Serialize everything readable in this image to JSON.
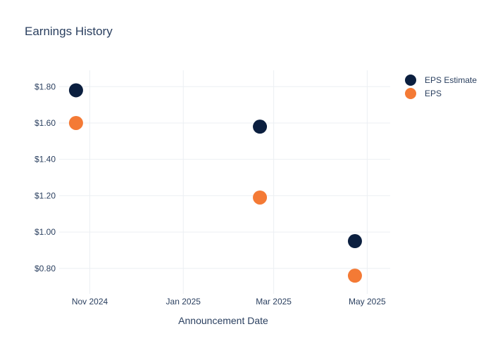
{
  "chart_data": {
    "type": "scatter",
    "title": "Earnings History",
    "xlabel": "Announcement Date",
    "ylabel": "",
    "x_tick_labels": [
      "Nov 2024",
      "Jan 2025",
      "Mar 2025",
      "May 2025"
    ],
    "x_ticks": [
      "2024-11-01",
      "2025-01-01",
      "2025-03-01",
      "2025-05-01"
    ],
    "xlim": [
      "2024-10-12",
      "2025-05-16"
    ],
    "y_tick_labels": [
      "$0.80",
      "$1.00",
      "$1.20",
      "$1.40",
      "$1.60",
      "$1.80"
    ],
    "y_ticks": [
      0.8,
      1.0,
      1.2,
      1.4,
      1.6,
      1.8
    ],
    "ylim": [
      0.66,
      1.89
    ],
    "grid": true,
    "legend_position": "top-right",
    "series": [
      {
        "name": "EPS Estimate",
        "color": "#0b1f3f",
        "points": [
          {
            "x": "2024-10-23",
            "y": 1.78
          },
          {
            "x": "2025-02-20",
            "y": 1.58
          },
          {
            "x": "2025-04-23",
            "y": 0.95
          }
        ]
      },
      {
        "name": "EPS",
        "color": "#f47a35",
        "points": [
          {
            "x": "2024-10-23",
            "y": 1.6
          },
          {
            "x": "2025-02-20",
            "y": 1.19
          },
          {
            "x": "2025-04-23",
            "y": 0.76
          }
        ]
      }
    ]
  }
}
